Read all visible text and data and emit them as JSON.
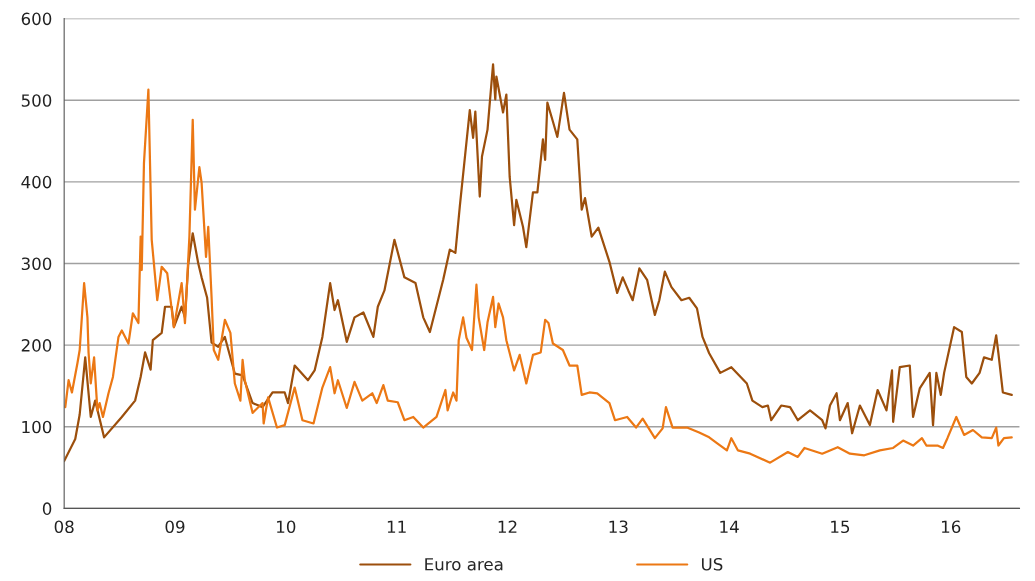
{
  "chart_data": {
    "type": "line",
    "xlim": [
      8,
      16.62
    ],
    "ylim": [
      0,
      600
    ],
    "yticks": [
      0,
      100,
      200,
      300,
      400,
      500,
      600
    ],
    "xticks": [
      {
        "value": 8,
        "label": "08"
      },
      {
        "value": 9,
        "label": "09"
      },
      {
        "value": 10,
        "label": "10"
      },
      {
        "value": 11,
        "label": "11"
      },
      {
        "value": 12,
        "label": "12"
      },
      {
        "value": 13,
        "label": "13"
      },
      {
        "value": 14,
        "label": "14"
      },
      {
        "value": 15,
        "label": "15"
      },
      {
        "value": 16,
        "label": "16"
      }
    ],
    "grid": "y",
    "legend": "bottom",
    "marker": "none",
    "line_style": "solid",
    "series": [
      {
        "name": "Euro area",
        "color": "#9c4f0c",
        "x": [
          8.0,
          8.1,
          8.14,
          8.19,
          8.24,
          8.28,
          8.36,
          8.52,
          8.64,
          8.69,
          8.73,
          8.78,
          8.8,
          8.88,
          8.91,
          8.97,
          8.99,
          9.06,
          9.09,
          9.12,
          9.16,
          9.21,
          9.24,
          9.29,
          9.33,
          9.39,
          9.45,
          9.54,
          9.61,
          9.7,
          9.79,
          9.88,
          9.99,
          10.02,
          10.08,
          10.2,
          10.26,
          10.33,
          10.4,
          10.44,
          10.47,
          10.55,
          10.62,
          10.7,
          10.79,
          10.83,
          10.89,
          10.98,
          11.07,
          11.17,
          11.24,
          11.3,
          11.42,
          11.48,
          11.53,
          11.57,
          11.66,
          11.69,
          11.71,
          11.75,
          11.77,
          11.82,
          11.87,
          11.89,
          11.9,
          11.96,
          11.99,
          12.02,
          12.06,
          12.08,
          12.14,
          12.17,
          12.23,
          12.27,
          12.32,
          12.34,
          12.36,
          12.41,
          12.45,
          12.51,
          12.56,
          12.63,
          12.67,
          12.7,
          12.76,
          12.82,
          12.92,
          12.99,
          13.04,
          13.09,
          13.13,
          13.19,
          13.26,
          13.33,
          13.37,
          13.42,
          13.48,
          13.57,
          13.64,
          13.71,
          13.76,
          13.82,
          13.92,
          14.02,
          14.16,
          14.21,
          14.3,
          14.35,
          14.38,
          14.47,
          14.55,
          14.62,
          14.73,
          14.84,
          14.87,
          14.91,
          14.97,
          15.0,
          15.07,
          15.11,
          15.18,
          15.27,
          15.34,
          15.42,
          15.47,
          15.48,
          15.54,
          15.63,
          15.66,
          15.72,
          15.81,
          15.84,
          15.87,
          15.91,
          15.94,
          16.03,
          16.1,
          16.14,
          16.19,
          16.26,
          16.3,
          16.37,
          16.41,
          16.43,
          16.47,
          16.55
        ],
        "values": [
          58,
          85,
          115,
          185,
          112,
          132,
          87,
          112,
          132,
          161,
          191,
          170,
          206,
          215,
          247,
          247,
          222,
          247,
          234,
          300,
          337,
          300,
          283,
          258,
          203,
          198,
          210,
          165,
          163,
          129,
          124,
          142,
          142,
          129,
          175,
          157,
          169,
          210,
          276,
          243,
          255,
          204,
          234,
          240,
          210,
          247,
          267,
          329,
          283,
          276,
          234,
          216,
          280,
          317,
          313,
          370,
          488,
          454,
          486,
          382,
          431,
          464,
          544,
          501,
          529,
          485,
          507,
          406,
          347,
          378,
          345,
          320,
          387,
          387,
          452,
          427,
          497,
          474,
          455,
          509,
          464,
          452,
          366,
          380,
          333,
          344,
          302,
          264,
          283,
          267,
          255,
          294,
          280,
          237,
          255,
          290,
          271,
          255,
          258,
          245,
          210,
          190,
          166,
          173,
          153,
          132,
          124,
          126,
          108,
          126,
          124,
          108,
          120,
          108,
          98,
          126,
          141,
          108,
          129,
          92,
          126,
          102,
          145,
          120,
          169,
          106,
          173,
          175,
          112,
          147,
          166,
          102,
          166,
          139,
          166,
          222,
          216,
          161,
          153,
          166,
          185,
          182,
          212,
          190,
          142,
          139
        ]
      },
      {
        "name": "US",
        "color": "#ec7814",
        "x": [
          8.01,
          8.04,
          8.07,
          8.12,
          8.14,
          8.18,
          8.21,
          8.22,
          8.24,
          8.27,
          8.3,
          8.32,
          8.35,
          8.4,
          8.44,
          8.49,
          8.52,
          8.58,
          8.62,
          8.67,
          8.69,
          8.7,
          8.72,
          8.76,
          8.79,
          8.84,
          8.88,
          8.93,
          8.96,
          8.99,
          9.06,
          9.09,
          9.13,
          9.16,
          9.18,
          9.22,
          9.24,
          9.28,
          9.3,
          9.33,
          9.35,
          9.39,
          9.45,
          9.5,
          9.54,
          9.59,
          9.61,
          9.63,
          9.7,
          9.79,
          9.8,
          9.84,
          9.92,
          9.99,
          10.08,
          10.15,
          10.25,
          10.33,
          10.4,
          10.44,
          10.47,
          10.55,
          10.62,
          10.69,
          10.78,
          10.82,
          10.88,
          10.92,
          11.01,
          11.07,
          11.15,
          11.24,
          11.36,
          11.44,
          11.46,
          11.51,
          11.54,
          11.56,
          11.6,
          11.63,
          11.68,
          11.72,
          11.74,
          11.79,
          11.82,
          11.87,
          11.89,
          11.92,
          11.96,
          11.99,
          12.06,
          12.11,
          12.17,
          12.23,
          12.3,
          12.34,
          12.37,
          12.41,
          12.5,
          12.56,
          12.63,
          12.67,
          12.74,
          12.81,
          12.92,
          12.97,
          13.08,
          13.16,
          13.22,
          13.33,
          13.4,
          13.43,
          13.49,
          13.62,
          13.73,
          13.82,
          13.89,
          13.98,
          14.02,
          14.08,
          14.19,
          14.37,
          14.53,
          14.62,
          14.68,
          14.84,
          14.98,
          15.09,
          15.22,
          15.36,
          15.48,
          15.57,
          15.66,
          15.74,
          15.78,
          15.88,
          15.93,
          15.97,
          16.05,
          16.12,
          16.2,
          16.28,
          16.37,
          16.41,
          16.43,
          16.48,
          16.55
        ],
        "values": [
          124,
          157,
          142,
          178,
          194,
          276,
          234,
          191,
          153,
          185,
          120,
          129,
          112,
          141,
          161,
          210,
          218,
          202,
          239,
          227,
          333,
          292,
          423,
          513,
          329,
          255,
          296,
          288,
          255,
          222,
          276,
          227,
          333,
          476,
          366,
          418,
          399,
          308,
          345,
          259,
          194,
          182,
          231,
          215,
          153,
          132,
          182,
          157,
          117,
          129,
          104,
          136,
          99,
          102,
          148,
          108,
          104,
          148,
          173,
          141,
          157,
          123,
          155,
          132,
          141,
          129,
          151,
          132,
          130,
          108,
          112,
          99,
          112,
          145,
          120,
          142,
          132,
          206,
          234,
          209,
          194,
          274,
          234,
          194,
          228,
          259,
          222,
          251,
          234,
          206,
          169,
          188,
          153,
          188,
          191,
          231,
          227,
          202,
          194,
          175,
          175,
          139,
          142,
          141,
          129,
          108,
          112,
          99,
          110,
          86,
          98,
          124,
          99,
          99,
          93,
          87,
          80,
          71,
          86,
          71,
          67,
          56,
          69,
          63,
          74,
          67,
          75,
          67,
          65,
          71,
          74,
          83,
          77,
          86,
          77,
          77,
          74,
          86,
          112,
          90,
          96,
          87,
          86,
          99,
          77,
          86,
          87
        ]
      }
    ]
  }
}
